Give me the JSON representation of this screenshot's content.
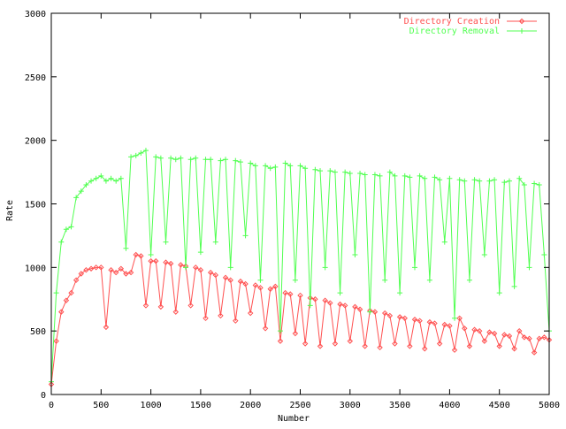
{
  "chart_data": {
    "type": "line",
    "title": "",
    "xlabel": "Number",
    "ylabel": "Rate",
    "xlim": [
      0,
      5000
    ],
    "ylim": [
      0,
      3000
    ],
    "xticks": [
      "0",
      "500",
      "1000",
      "1500",
      "2000",
      "2500",
      "3000",
      "3500",
      "4000",
      "4500",
      "5000"
    ],
    "yticks": [
      "0",
      "500",
      "1000",
      "1500",
      "2000",
      "2500",
      "3000"
    ],
    "grid": false,
    "legend_position": "top-right",
    "x": [
      0,
      50,
      100,
      150,
      200,
      250,
      300,
      350,
      400,
      450,
      500,
      550,
      600,
      650,
      700,
      750,
      800,
      850,
      900,
      950,
      1000,
      1050,
      1100,
      1150,
      1200,
      1250,
      1300,
      1350,
      1400,
      1450,
      1500,
      1550,
      1600,
      1650,
      1700,
      1750,
      1800,
      1850,
      1900,
      1950,
      2000,
      2050,
      2100,
      2150,
      2200,
      2250,
      2300,
      2350,
      2400,
      2450,
      2500,
      2550,
      2600,
      2650,
      2700,
      2750,
      2800,
      2850,
      2900,
      2950,
      3000,
      3050,
      3100,
      3150,
      3200,
      3250,
      3300,
      3350,
      3400,
      3450,
      3500,
      3550,
      3600,
      3650,
      3700,
      3750,
      3800,
      3850,
      3900,
      3950,
      4000,
      4050,
      4100,
      4150,
      4200,
      4250,
      4300,
      4350,
      4400,
      4450,
      4500,
      4550,
      4600,
      4650,
      4700,
      4750,
      4800,
      4850,
      4900,
      4950,
      5000
    ],
    "series": [
      {
        "name": "Directory Creation",
        "color": "#ff5050",
        "marker": "diamond",
        "values": [
          80,
          420,
          650,
          740,
          800,
          900,
          950,
          980,
          990,
          1000,
          1000,
          530,
          980,
          960,
          990,
          950,
          960,
          1100,
          1090,
          700,
          1050,
          1050,
          690,
          1040,
          1030,
          650,
          1020,
          1010,
          700,
          1000,
          980,
          600,
          960,
          940,
          620,
          920,
          900,
          580,
          890,
          870,
          640,
          860,
          840,
          520,
          830,
          850,
          420,
          800,
          790,
          480,
          780,
          400,
          760,
          750,
          380,
          740,
          720,
          400,
          710,
          700,
          420,
          690,
          670,
          380,
          660,
          650,
          370,
          640,
          620,
          400,
          610,
          600,
          380,
          590,
          580,
          360,
          570,
          560,
          400,
          550,
          540,
          350,
          600,
          520,
          380,
          510,
          500,
          420,
          490,
          480,
          380,
          470,
          460,
          360,
          500,
          450,
          440,
          330,
          440,
          450,
          430
        ]
      },
      {
        "name": "Directory Removal",
        "color": "#50ff50",
        "marker": "plus",
        "values": [
          100,
          800,
          1200,
          1300,
          1320,
          1550,
          1600,
          1650,
          1680,
          1700,
          1720,
          1680,
          1700,
          1680,
          1700,
          1150,
          1870,
          1880,
          1900,
          1920,
          1100,
          1870,
          1860,
          1200,
          1860,
          1850,
          1860,
          1000,
          1850,
          1860,
          1120,
          1850,
          1850,
          1200,
          1840,
          1850,
          1000,
          1840,
          1830,
          1250,
          1820,
          1800,
          900,
          1800,
          1780,
          1790,
          500,
          1820,
          1800,
          900,
          1800,
          1780,
          700,
          1770,
          1760,
          1000,
          1760,
          1750,
          800,
          1750,
          1740,
          1100,
          1740,
          1730,
          650,
          1730,
          1720,
          900,
          1750,
          1720,
          800,
          1720,
          1710,
          1000,
          1720,
          1700,
          900,
          1710,
          1690,
          1200,
          1700,
          600,
          1690,
          1680,
          900,
          1690,
          1680,
          1100,
          1680,
          1690,
          800,
          1670,
          1680,
          850,
          1700,
          1650,
          1000,
          1660,
          1650,
          1100,
          500
        ]
      }
    ]
  }
}
